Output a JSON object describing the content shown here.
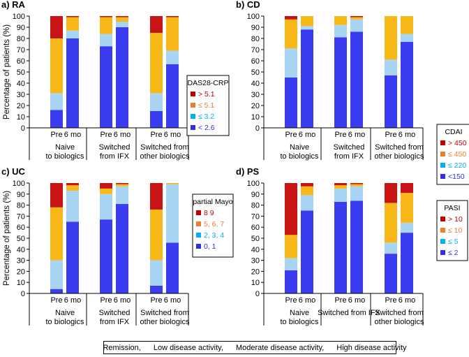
{
  "colors": {
    "remission": "#3b3bf0",
    "low": "#a9d5f5",
    "moderate": "#f9b81a",
    "high": "#c81414",
    "legend_high": "#c00000",
    "legend_moderate": "#ed7d31",
    "legend_low": "#00b0f0",
    "legend_remission": "#3030e0"
  },
  "footer_legend": {
    "items": [
      {
        "label": "Remission,",
        "color": "#3b3bf0"
      },
      {
        "label": "Low disease activity,",
        "color": "#3ab6ee"
      },
      {
        "label": "Moderate disease activity,",
        "color": "#f08a3a"
      },
      {
        "label": "High disease activity",
        "color": "#c81414"
      }
    ]
  },
  "chart_data": [
    {
      "type": "bar",
      "stacked": true,
      "title": "a) RA",
      "ylabel": "Percentage of patients (%)",
      "ylim": [
        0,
        100
      ],
      "yticks": [
        0,
        10,
        20,
        30,
        40,
        50,
        60,
        70,
        80,
        90,
        100
      ],
      "x_labels": [
        "Pre",
        "6 mo",
        "Pre",
        "6 mo",
        "Pre",
        "6 mo"
      ],
      "groups": [
        [
          "Naive",
          "to biologics"
        ],
        [
          "Switched",
          "from IFX"
        ],
        [
          "Switched from",
          "other biologics"
        ]
      ],
      "legend_title": "DAS28-CRP",
      "legend_items": [
        "> 5.1",
        "≤ 5.1",
        "≤ 3.2",
        "< 2.6"
      ],
      "series": [
        {
          "name": "Remission",
          "values": [
            16,
            80,
            73,
            90,
            15,
            57
          ]
        },
        {
          "name": "Low disease activity",
          "values": [
            15,
            7,
            11,
            5,
            16,
            12
          ]
        },
        {
          "name": "Moderate disease activity",
          "values": [
            49,
            12,
            15,
            4,
            54,
            30
          ]
        },
        {
          "name": "High disease activity",
          "values": [
            20,
            1,
            1,
            1,
            15,
            1
          ]
        }
      ]
    },
    {
      "type": "bar",
      "stacked": true,
      "title": "b) CD",
      "ylabel": "",
      "ylim": [
        0,
        100
      ],
      "yticks": [
        0,
        10,
        20,
        30,
        40,
        50,
        60,
        70,
        80,
        90,
        100
      ],
      "x_labels": [
        "Pre",
        "6 mo",
        "Pre",
        "6 mo",
        "Pre",
        "6 mo"
      ],
      "groups": [
        [
          "Naive",
          "to biologics"
        ],
        [
          "Switched",
          "from IFX"
        ],
        [
          "Switched from",
          "other biologics"
        ]
      ],
      "legend_title": "CDAI",
      "legend_items": [
        "> 450",
        "≤ 450",
        "≤ 220",
        "<150"
      ],
      "series": [
        {
          "name": "Remission",
          "values": [
            45,
            88,
            81,
            86,
            47,
            77
          ]
        },
        {
          "name": "Low disease activity",
          "values": [
            26,
            3,
            11,
            11,
            14,
            7
          ]
        },
        {
          "name": "Moderate disease activity",
          "values": [
            26,
            9,
            8,
            2,
            39,
            16
          ]
        },
        {
          "name": "High disease activity",
          "values": [
            3,
            0,
            0,
            1,
            0,
            0
          ]
        }
      ]
    },
    {
      "type": "bar",
      "stacked": true,
      "title": "c) UC",
      "ylabel": "Percentage of patients (%)",
      "ylim": [
        0,
        100
      ],
      "yticks": [
        0,
        10,
        20,
        30,
        40,
        50,
        60,
        70,
        80,
        90,
        100
      ],
      "x_labels": [
        "Pre",
        "6 mo",
        "Pre",
        "6 mo",
        "Pre",
        "6 mo"
      ],
      "groups": [
        [
          "Naive",
          "to biologics"
        ],
        [
          "Switched",
          "from IFX"
        ],
        [
          "Switched from",
          "other biologics"
        ]
      ],
      "legend_title": "partial Mayo",
      "legend_items": [
        "8 9",
        "5, 6, 7",
        "2, 3, 4",
        "0, 1"
      ],
      "series": [
        {
          "name": "Remission",
          "values": [
            4,
            65,
            67,
            81,
            7,
            46
          ]
        },
        {
          "name": "Low disease activity",
          "values": [
            26,
            28,
            23,
            16,
            23,
            53
          ]
        },
        {
          "name": "Moderate disease activity",
          "values": [
            48,
            5,
            5,
            2,
            46,
            1
          ]
        },
        {
          "name": "High disease activity",
          "values": [
            22,
            2,
            5,
            1,
            24,
            0
          ]
        }
      ]
    },
    {
      "type": "bar",
      "stacked": true,
      "title": "d) PS",
      "ylabel": "",
      "ylim": [
        0,
        100
      ],
      "yticks": [
        0,
        10,
        20,
        30,
        40,
        50,
        60,
        70,
        80,
        90,
        100
      ],
      "x_labels": [
        "Pre",
        "6 mo",
        "Pre",
        "6 mo",
        "Pre",
        "6 mo"
      ],
      "groups": [
        [
          "Naive",
          "to biologics"
        ],
        [
          "Switched from IFX",
          ""
        ],
        [
          "Switched from",
          "other biologics"
        ]
      ],
      "legend_title": "PASI",
      "legend_items": [
        "> 10",
        "≤ 10",
        "≤ 5",
        "≤ 2"
      ],
      "series": [
        {
          "name": "Remission",
          "values": [
            21,
            75,
            83,
            84,
            36,
            55
          ]
        },
        {
          "name": "Low disease activity",
          "values": [
            11,
            14,
            12,
            13,
            10,
            9
          ]
        },
        {
          "name": "Moderate disease activity",
          "values": [
            21,
            8,
            3,
            2,
            36,
            27
          ]
        },
        {
          "name": "High disease activity",
          "values": [
            47,
            3,
            2,
            1,
            18,
            9
          ]
        }
      ]
    }
  ]
}
